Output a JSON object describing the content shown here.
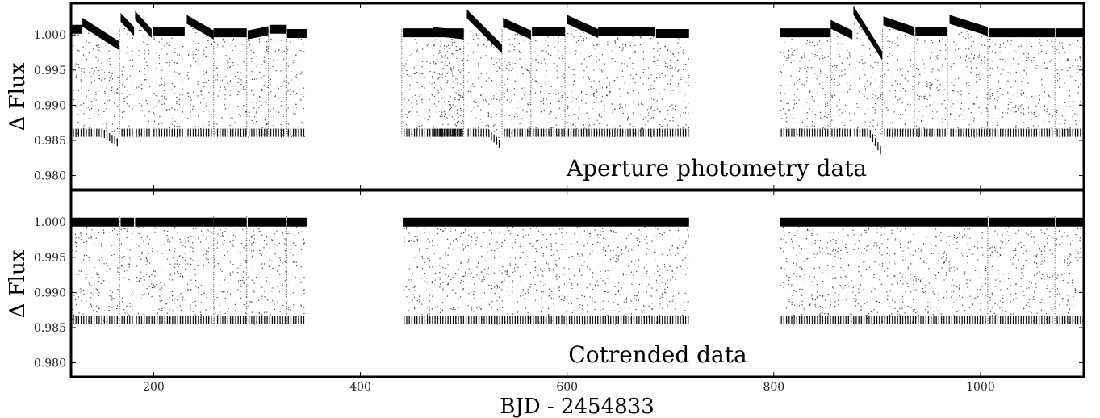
{
  "chart_data": [
    {
      "type": "scatter",
      "title": "",
      "annotation": "Aperture photometry data",
      "xlabel": "BJD - 2454833",
      "ylabel": "Δ Flux",
      "xlim": [
        120,
        1100
      ],
      "ylim": [
        0.978,
        1.0045
      ],
      "x_ticks": [
        200,
        400,
        600,
        800,
        1000
      ],
      "y_ticks": [
        0.98,
        0.985,
        0.99,
        0.995,
        1.0
      ],
      "y_tick_labels": [
        "0.980",
        "0.985",
        "0.990",
        "0.995",
        "1.000"
      ],
      "grid": false,
      "marker_color": "#000000",
      "transit_floor": 0.9855,
      "segments": [
        {
          "x": [
            121,
            131
          ],
          "y": [
            1.0008,
            1.0008
          ]
        },
        {
          "x": [
            131,
            166
          ],
          "y": [
            1.0018,
            0.9985
          ]
        },
        {
          "x": [
            168,
            181
          ],
          "y": [
            1.0025,
            1.0005
          ]
        },
        {
          "x": [
            182,
            198
          ],
          "y": [
            1.0028,
            1.0002
          ]
        },
        {
          "x": [
            199,
            230
          ],
          "y": [
            1.0005,
            1.0005
          ]
        },
        {
          "x": [
            232,
            258
          ],
          "y": [
            1.0022,
            1.0
          ]
        },
        {
          "x": [
            258,
            290
          ],
          "y": [
            1.0003,
            1.0003
          ]
        },
        {
          "x": [
            291,
            311
          ],
          "y": [
            1.0,
            1.0006
          ]
        },
        {
          "x": [
            312,
            328
          ],
          "y": [
            1.0008,
            1.0008
          ]
        },
        {
          "x": [
            329,
            348
          ],
          "y": [
            1.0002,
            1.0002
          ]
        },
        {
          "x": [
            441,
            500
          ],
          "y": [
            1.0003,
            1.0003
          ]
        },
        {
          "x": [
            470,
            500
          ],
          "y": [
            1.0005,
            1.0
          ]
        },
        {
          "x": [
            503,
            537
          ],
          "y": [
            1.003,
            0.998
          ]
        },
        {
          "x": [
            538,
            565
          ],
          "y": [
            1.0018,
            1.0
          ]
        },
        {
          "x": [
            566,
            598
          ],
          "y": [
            1.0005,
            1.0005
          ]
        },
        {
          "x": [
            600,
            630
          ],
          "y": [
            1.0022,
            1.0002
          ]
        },
        {
          "x": [
            630,
            685
          ],
          "y": [
            1.0005,
            1.0005
          ]
        },
        {
          "x": [
            686,
            718
          ],
          "y": [
            1.0002,
            1.0002
          ]
        },
        {
          "x": [
            806,
            855
          ],
          "y": [
            1.0003,
            1.0003
          ]
        },
        {
          "x": [
            855,
            876
          ],
          "y": [
            1.0015,
            1.0
          ]
        },
        {
          "x": [
            877,
            905
          ],
          "y": [
            1.0035,
            0.997
          ]
        },
        {
          "x": [
            906,
            936
          ],
          "y": [
            1.002,
            1.0005
          ]
        },
        {
          "x": [
            937,
            968
          ],
          "y": [
            1.0005,
            1.0005
          ]
        },
        {
          "x": [
            970,
            1007
          ],
          "y": [
            1.0022,
            1.0005
          ]
        },
        {
          "x": [
            1008,
            1072
          ],
          "y": [
            1.0003,
            1.0003
          ]
        },
        {
          "x": [
            1073,
            1100
          ],
          "y": [
            1.0003,
            1.0003
          ]
        }
      ],
      "gaps_x": [
        167,
        258,
        290,
        311,
        328,
        440,
        500,
        537,
        565,
        598,
        685,
        855,
        905,
        936,
        968,
        1007,
        1072
      ]
    },
    {
      "type": "scatter",
      "title": "",
      "annotation": "Cotrended data",
      "xlabel": "BJD - 2454833",
      "ylabel": "Δ Flux",
      "xlim": [
        120,
        1100
      ],
      "ylim": [
        0.978,
        1.0045
      ],
      "x_ticks": [
        200,
        400,
        600,
        800,
        1000
      ],
      "x_tick_labels": [
        "200",
        "400",
        "600",
        "800",
        "1000"
      ],
      "y_ticks": [
        0.98,
        0.985,
        0.99,
        0.995,
        1.0
      ],
      "y_tick_labels": [
        "0.980",
        "0.985",
        "0.990",
        "0.995",
        "1.000"
      ],
      "grid": false,
      "marker_color": "#000000",
      "transit_floor": 0.9855,
      "segments": [
        {
          "x": [
            121,
            166
          ],
          "y": [
            1.0,
            1.0
          ]
        },
        {
          "x": [
            168,
            181
          ],
          "y": [
            1.0,
            1.0
          ]
        },
        {
          "x": [
            182,
            258
          ],
          "y": [
            1.0,
            1.0
          ]
        },
        {
          "x": [
            258,
            290
          ],
          "y": [
            1.0,
            1.0
          ]
        },
        {
          "x": [
            291,
            328
          ],
          "y": [
            1.0,
            1.0
          ]
        },
        {
          "x": [
            329,
            348
          ],
          "y": [
            1.0,
            1.0
          ]
        },
        {
          "x": [
            441,
            718
          ],
          "y": [
            1.0,
            1.0
          ]
        },
        {
          "x": [
            806,
            1007
          ],
          "y": [
            1.0,
            1.0
          ]
        },
        {
          "x": [
            1008,
            1072
          ],
          "y": [
            1.0,
            1.0
          ]
        },
        {
          "x": [
            1073,
            1100
          ],
          "y": [
            1.0,
            1.0
          ]
        }
      ],
      "gaps_x": [
        167,
        258,
        290,
        328,
        685,
        1007,
        1072
      ]
    }
  ]
}
